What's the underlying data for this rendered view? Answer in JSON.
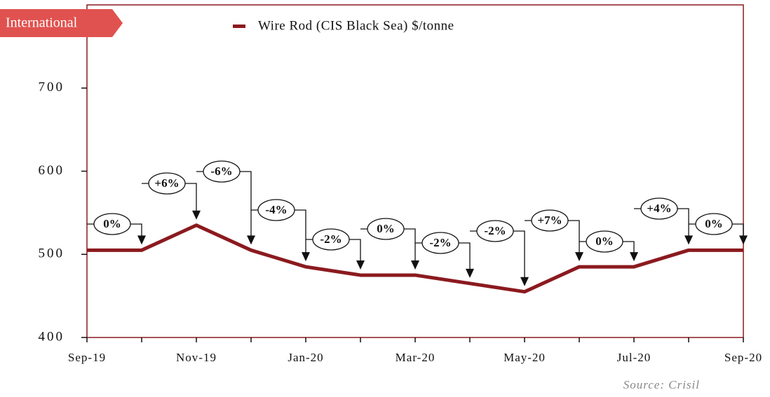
{
  "chart_data": {
    "type": "line",
    "badge": "International",
    "source": "Source: Crisil",
    "categories": [
      "Sep-19",
      null,
      "Nov-19",
      null,
      "Jan-20",
      null,
      "Mar-20",
      null,
      "May-20",
      null,
      "Jul-20",
      null,
      "Sep-20"
    ],
    "series": [
      {
        "name": "Wire Rod (CIS Black Sea) $/tonne",
        "color": "#8b1a1f",
        "values": [
          505,
          505,
          535,
          505,
          485,
          475,
          475,
          465,
          455,
          485,
          485,
          505,
          505
        ]
      }
    ],
    "annotations": [
      "0%",
      "+6%",
      "-6%",
      "-4%",
      "-2%",
      "0%",
      "-2%",
      "-2%",
      "+7%",
      "0%",
      "+4%",
      "0%"
    ],
    "ylim": [
      400,
      800
    ],
    "yticks": [
      400,
      500,
      600,
      700
    ]
  }
}
